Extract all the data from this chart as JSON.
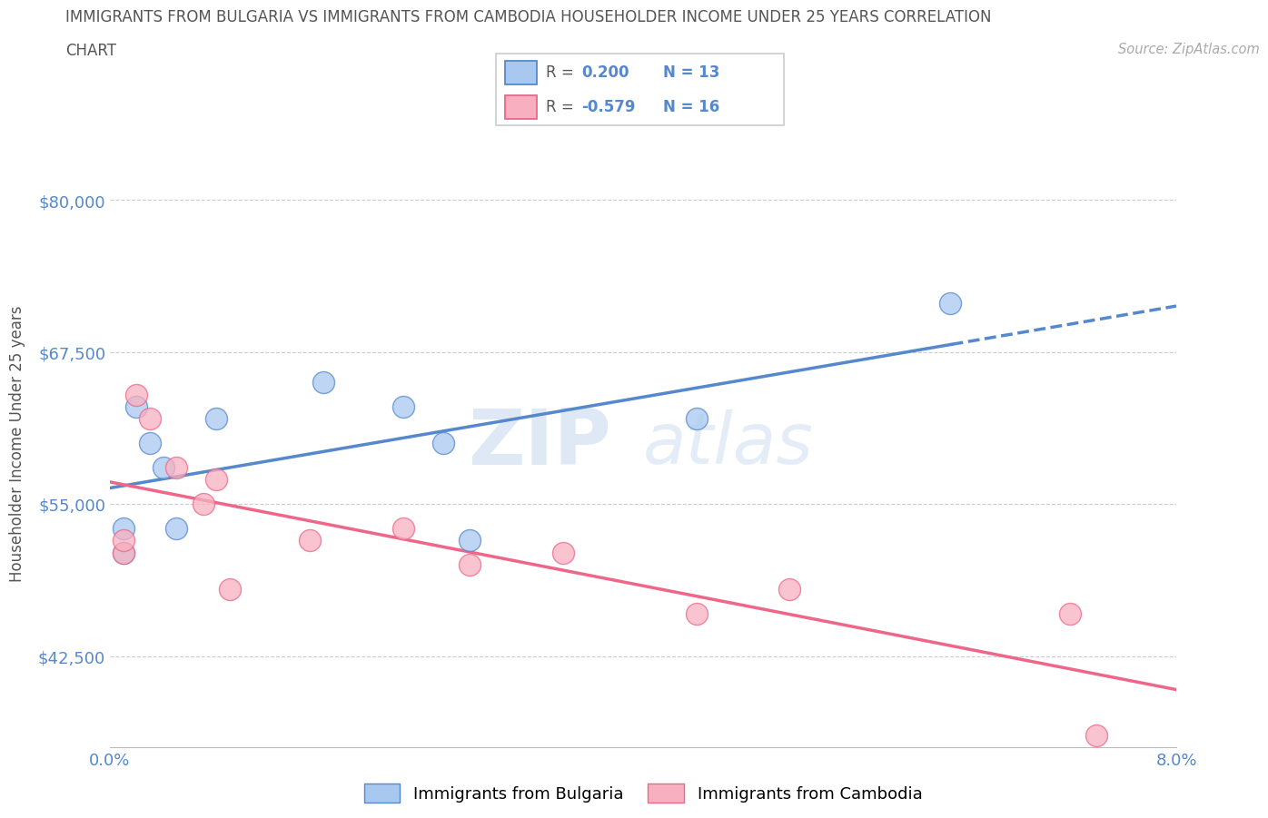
{
  "title_line1": "IMMIGRANTS FROM BULGARIA VS IMMIGRANTS FROM CAMBODIA HOUSEHOLDER INCOME UNDER 25 YEARS CORRELATION",
  "title_line2": "CHART",
  "source": "Source: ZipAtlas.com",
  "ylabel": "Householder Income Under 25 years",
  "xlim": [
    0.0,
    0.08
  ],
  "ylim": [
    35000,
    85000
  ],
  "yticks": [
    42500,
    55000,
    67500,
    80000
  ],
  "ytick_labels": [
    "$42,500",
    "$55,000",
    "$67,500",
    "$80,000"
  ],
  "xticks": [
    0.0,
    0.01,
    0.02,
    0.03,
    0.04,
    0.05,
    0.06,
    0.07,
    0.08
  ],
  "xtick_labels": [
    "0.0%",
    "",
    "",
    "",
    "",
    "",
    "",
    "",
    "8.0%"
  ],
  "bulgaria_x": [
    0.001,
    0.001,
    0.002,
    0.003,
    0.004,
    0.005,
    0.008,
    0.016,
    0.022,
    0.025,
    0.027,
    0.044,
    0.063
  ],
  "bulgaria_y": [
    51000,
    53000,
    63000,
    60000,
    58000,
    53000,
    62000,
    65000,
    63000,
    60000,
    52000,
    62000,
    71500
  ],
  "cambodia_x": [
    0.001,
    0.001,
    0.002,
    0.003,
    0.005,
    0.007,
    0.008,
    0.009,
    0.015,
    0.022,
    0.027,
    0.034,
    0.044,
    0.051,
    0.072,
    0.074
  ],
  "cambodia_y": [
    51000,
    52000,
    64000,
    62000,
    58000,
    55000,
    57000,
    48000,
    52000,
    53000,
    50000,
    51000,
    46000,
    48000,
    46000,
    36000
  ],
  "bulgaria_color": "#a8c8f0",
  "cambodia_color": "#f8b0c0",
  "bulgaria_line_color": "#5588cc",
  "cambodia_line_color": "#ee6688",
  "r_bulgaria": 0.2,
  "n_bulgaria": 13,
  "r_cambodia": -0.579,
  "n_cambodia": 16,
  "watermark_zip": "ZIP",
  "watermark_atlas": "atlas",
  "background_color": "#ffffff",
  "grid_color": "#cccccc",
  "title_color": "#555555",
  "axis_label_color": "#5588cc",
  "legend_border_color": "#cccccc"
}
